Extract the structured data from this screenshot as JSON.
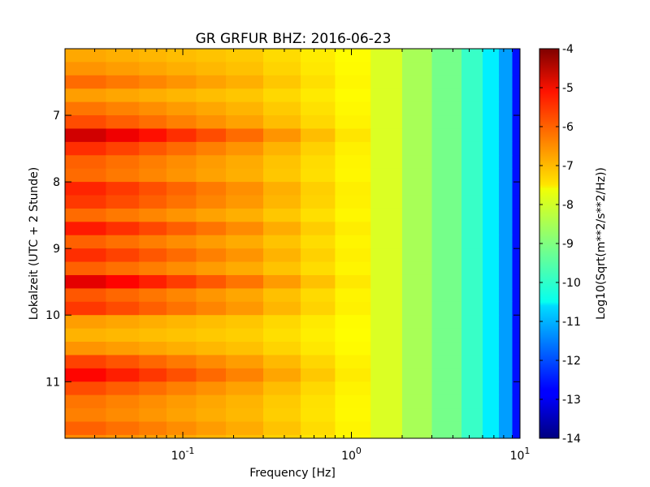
{
  "chart_data": {
    "type": "heatmap",
    "title": "GR GRFUR BHZ: 2016-06-23",
    "xlabel": "Frequency [Hz]",
    "ylabel": "Lokalzeit (UTC + 2 Stunde)",
    "x_scale": "log",
    "xlim": [
      0.02,
      10
    ],
    "x_ticks": [
      {
        "value": 0.1,
        "base": "10",
        "exp": "-1"
      },
      {
        "value": 1,
        "base": "10",
        "exp": "0"
      },
      {
        "value": 10,
        "base": "10",
        "exp": "1"
      }
    ],
    "ylim": [
      6.0,
      11.85
    ],
    "y_inverted": true,
    "y_ticks": [
      {
        "value": 7,
        "label": "7"
      },
      {
        "value": 8,
        "label": "8"
      },
      {
        "value": 9,
        "label": "9"
      },
      {
        "value": 10,
        "label": "10"
      },
      {
        "value": 11,
        "label": "11"
      }
    ],
    "colormap": "jet",
    "colorbar": {
      "label": "Log10(Sqrt(m**2/s**2/Hz))",
      "range": [
        -14,
        -4
      ],
      "ticks": [
        "-4",
        "-5",
        "-6",
        "-7",
        "-8",
        "-9",
        "-10",
        "-11",
        "-12",
        "-13",
        "-14"
      ]
    },
    "frequency_bins": [
      0.02,
      0.035,
      0.055,
      0.08,
      0.12,
      0.18,
      0.3,
      0.5,
      0.8,
      1.3,
      2,
      3,
      4.5,
      6,
      7.5,
      9,
      10
    ],
    "spectrum_profile_log10": [
      -6.6,
      -6.7,
      -6.8,
      -6.9,
      -7.0,
      -7.1,
      -7.3,
      -7.5,
      -7.7,
      -8.1,
      -8.6,
      -9.1,
      -9.7,
      -10.4,
      -11.2,
      -12.6
    ],
    "time_rows": [
      {
        "t": 6.0,
        "offset": -0.3
      },
      {
        "t": 6.2,
        "offset": -0.1
      },
      {
        "t": 6.4,
        "offset": 0.3
      },
      {
        "t": 6.6,
        "offset": -0.2
      },
      {
        "t": 6.8,
        "offset": 0.2
      },
      {
        "t": 7.0,
        "offset": 0.6
      },
      {
        "t": 7.2,
        "offset": 1.8
      },
      {
        "t": 7.4,
        "offset": 0.9
      },
      {
        "t": 7.6,
        "offset": 0.4
      },
      {
        "t": 7.8,
        "offset": 0.3
      },
      {
        "t": 8.0,
        "offset": 1.0
      },
      {
        "t": 8.2,
        "offset": 0.8
      },
      {
        "t": 8.4,
        "offset": 0.3
      },
      {
        "t": 8.6,
        "offset": 1.1
      },
      {
        "t": 8.8,
        "offset": 0.4
      },
      {
        "t": 9.0,
        "offset": 0.9
      },
      {
        "t": 9.2,
        "offset": 0.4
      },
      {
        "t": 9.4,
        "offset": 1.6
      },
      {
        "t": 9.6,
        "offset": 0.5
      },
      {
        "t": 9.8,
        "offset": 0.8
      },
      {
        "t": 10.0,
        "offset": -0.2
      },
      {
        "t": 10.2,
        "offset": -0.4
      },
      {
        "t": 10.4,
        "offset": -0.1
      },
      {
        "t": 10.6,
        "offset": 0.7
      },
      {
        "t": 10.8,
        "offset": 1.3
      },
      {
        "t": 11.0,
        "offset": 0.6
      },
      {
        "t": 11.2,
        "offset": 0.2
      },
      {
        "t": 11.4,
        "offset": 0.1
      },
      {
        "t": 11.6,
        "offset": 0.4
      },
      {
        "t": 11.8,
        "offset": 0.0
      }
    ],
    "grid": false
  }
}
